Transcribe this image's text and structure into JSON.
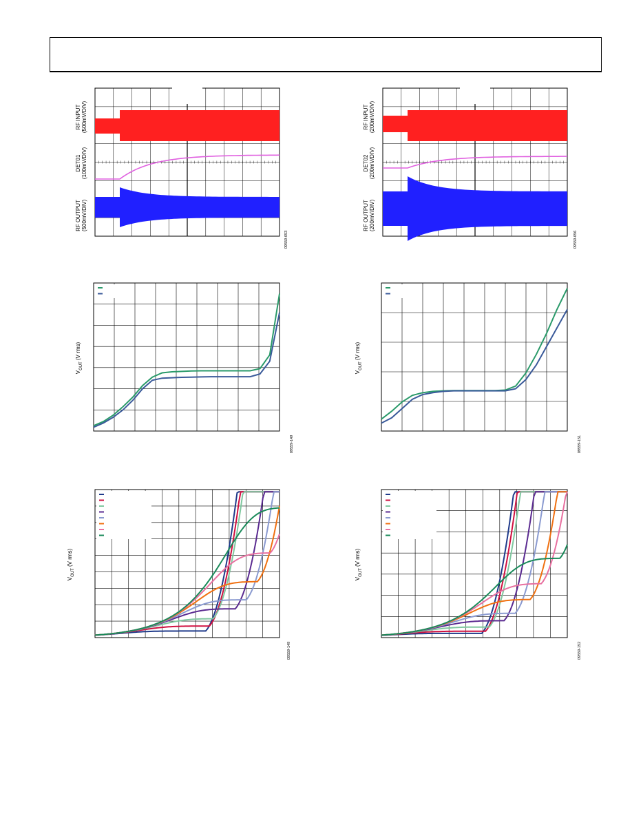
{
  "page": {
    "header_text": ""
  },
  "chart_data": [
    {
      "id": "scope-1",
      "type": "line",
      "panel_label": "",
      "channel_labels": [
        "RF INPUT\n(500mV/DIV)",
        "DET01\n(100mV/DIV)",
        "RF OUTPUT\n(500mV/DIV)"
      ],
      "figure_id": "09559-053",
      "series": [
        {
          "color": "#ff2020",
          "role": "rf-input-envelope"
        },
        {
          "color": "#e060e0",
          "role": "detector-output"
        },
        {
          "color": "#2020ff",
          "role": "rf-output-envelope"
        }
      ],
      "grid": true
    },
    {
      "id": "scope-2",
      "type": "line",
      "panel_label": "",
      "channel_labels": [
        "RF INPUT\n(200mV/DIV)",
        "DET02\n(200mV/DIV)",
        "RF OUTPUT\n(200mV/DIV)"
      ],
      "figure_id": "09559-056",
      "series": [
        {
          "color": "#ff2020",
          "role": "rf-input-envelope"
        },
        {
          "color": "#e060e0",
          "role": "detector-output"
        },
        {
          "color": "#2020ff",
          "role": "rf-output-envelope"
        }
      ],
      "grid": true
    },
    {
      "id": "vout-1",
      "type": "line",
      "ylabel": "V_OUT (V rms)",
      "figure_id": "09559-149",
      "x": [
        0,
        0.5,
        1,
        1.5,
        2,
        2.5,
        3,
        3.5,
        4,
        4.5,
        5,
        5.5,
        6,
        6.5,
        7,
        7.5,
        8,
        8.5,
        9,
        9.5
      ],
      "series": [
        {
          "color": "#2a9a6a",
          "values": [
            0.25,
            0.45,
            0.75,
            1.15,
            1.6,
            2.15,
            2.55,
            2.75,
            2.8,
            2.82,
            2.84,
            2.85,
            2.85,
            2.85,
            2.85,
            2.85,
            2.85,
            2.95,
            3.6,
            6.5
          ]
        },
        {
          "color": "#3a5a9a",
          "values": [
            0.18,
            0.38,
            0.65,
            1.0,
            1.45,
            2.0,
            2.4,
            2.5,
            2.52,
            2.54,
            2.55,
            2.56,
            2.57,
            2.57,
            2.57,
            2.57,
            2.57,
            2.7,
            3.3,
            5.6
          ]
        }
      ],
      "grid": true
    },
    {
      "id": "vout-2",
      "type": "line",
      "ylabel": "V_OUT (V rms)",
      "figure_id": "09559-151",
      "x": [
        0,
        0.5,
        1,
        1.5,
        2,
        2.5,
        3,
        3.5,
        4,
        4.5,
        5,
        5.5,
        6,
        6.5,
        7,
        7.5,
        8,
        8.5,
        9
      ],
      "series": [
        {
          "color": "#2a9a6a",
          "values": [
            0.45,
            0.75,
            1.1,
            1.35,
            1.45,
            1.5,
            1.52,
            1.53,
            1.53,
            1.53,
            1.53,
            1.53,
            1.55,
            1.7,
            2.2,
            2.9,
            3.7,
            4.6,
            5.4
          ]
        },
        {
          "color": "#3a5a9a",
          "values": [
            0.3,
            0.5,
            0.85,
            1.2,
            1.38,
            1.45,
            1.5,
            1.52,
            1.52,
            1.52,
            1.52,
            1.52,
            1.52,
            1.6,
            1.95,
            2.5,
            3.2,
            3.9,
            4.6
          ]
        }
      ],
      "grid": true
    },
    {
      "id": "vout-3",
      "type": "line",
      "ylabel": "V_OUT (V rms)",
      "figure_id": "09559-149",
      "x_range": [
        0,
        10
      ],
      "y_range": [
        0,
        9
      ],
      "series": [
        {
          "color": "#1f3a8a",
          "plateau": 0.4,
          "knee": 6.0
        },
        {
          "color": "#d01040",
          "plateau": 0.7,
          "knee": 6.2
        },
        {
          "color": "#80c8a0",
          "plateau": 1.15,
          "knee": 6.4
        },
        {
          "color": "#5a2a90",
          "plateau": 1.75,
          "knee": 7.6
        },
        {
          "color": "#8a9ad0",
          "plateau": 2.3,
          "knee": 8.2
        },
        {
          "color": "#f07010",
          "plateau": 3.4,
          "knee": 8.8
        },
        {
          "color": "#e870a0",
          "plateau": 5.15,
          "knee": 9.5
        },
        {
          "color": "#1a8a5a",
          "plateau": 7.9,
          "knee": 10.0
        }
      ],
      "legend_entries": [
        "",
        "",
        "",
        "",
        "",
        "",
        "",
        ""
      ],
      "grid": true
    },
    {
      "id": "vout-4",
      "type": "line",
      "ylabel": "V_OUT (V rms)",
      "figure_id": "09559-152",
      "x_range": [
        0,
        10
      ],
      "y_range": [
        0,
        7
      ],
      "series": [
        {
          "color": "#1f3a8a",
          "plateau": 0.2,
          "knee": 5.4
        },
        {
          "color": "#d01040",
          "plateau": 0.3,
          "knee": 5.6
        },
        {
          "color": "#80c8a0",
          "plateau": 0.5,
          "knee": 5.8
        },
        {
          "color": "#5a2a90",
          "plateau": 0.8,
          "knee": 6.6
        },
        {
          "color": "#8a9ad0",
          "plateau": 1.15,
          "knee": 7.2
        },
        {
          "color": "#f07010",
          "plateau": 1.8,
          "knee": 8.0
        },
        {
          "color": "#e870a0",
          "plateau": 2.55,
          "knee": 8.6
        },
        {
          "color": "#1a8a5a",
          "plateau": 3.75,
          "knee": 9.6
        }
      ],
      "legend_entries": [
        "",
        "",
        "",
        "",
        "",
        "",
        "",
        ""
      ],
      "grid": true
    }
  ]
}
